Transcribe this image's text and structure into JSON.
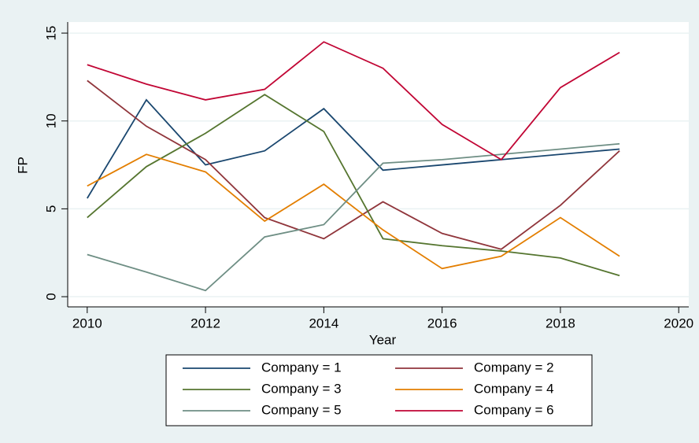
{
  "chart_data": {
    "type": "line",
    "x": [
      2010,
      2011,
      2012,
      2013,
      2014,
      2015,
      2016,
      2017,
      2018,
      2019
    ],
    "series": [
      {
        "name": "Company = 1",
        "color": "#1a476f",
        "values": [
          5.6,
          11.2,
          7.5,
          8.3,
          10.7,
          7.2,
          7.5,
          7.8,
          8.1,
          8.4
        ]
      },
      {
        "name": "Company = 2",
        "color": "#90353b",
        "values": [
          12.3,
          9.7,
          7.8,
          4.5,
          3.3,
          5.4,
          3.6,
          2.7,
          5.2,
          8.3
        ]
      },
      {
        "name": "Company = 3",
        "color": "#55752f",
        "values": [
          4.5,
          7.4,
          9.3,
          11.5,
          9.4,
          3.3,
          2.9,
          2.6,
          2.2,
          1.2
        ]
      },
      {
        "name": "Company = 4",
        "color": "#e37e00",
        "values": [
          6.3,
          8.1,
          7.1,
          4.3,
          6.4,
          3.8,
          1.6,
          2.3,
          4.5,
          2.3
        ]
      },
      {
        "name": "Company = 5",
        "color": "#6e8e84",
        "values": [
          2.4,
          1.4,
          0.35,
          3.4,
          4.1,
          7.6,
          7.8,
          8.1,
          8.4,
          8.7
        ]
      },
      {
        "name": "Company = 6",
        "color": "#c10534",
        "values": [
          13.2,
          12.1,
          11.2,
          11.8,
          14.5,
          13.0,
          9.8,
          7.8,
          11.9,
          13.9
        ]
      }
    ],
    "xlabel": "Year",
    "ylabel": "FP",
    "xlim": [
      2009.67,
      2020.17
    ],
    "xticks": [
      2010,
      2012,
      2014,
      2016,
      2018,
      2020
    ],
    "ylim": [
      -0.58,
      15.63
    ],
    "yticks": [
      0,
      5,
      10,
      15
    ],
    "grid": true,
    "legend": "bottom"
  }
}
